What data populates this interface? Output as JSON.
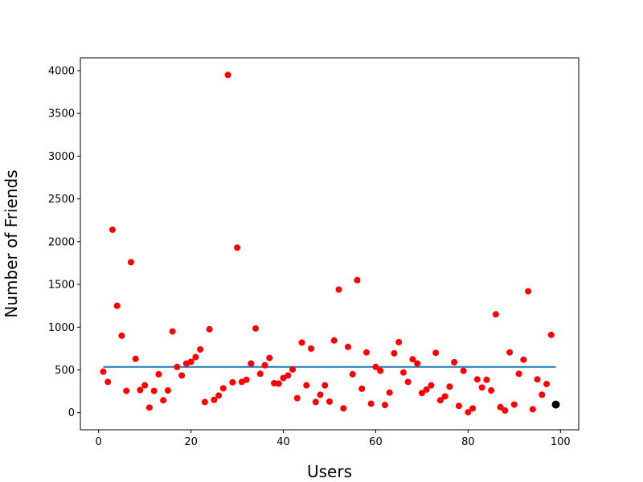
{
  "chart_data": {
    "type": "scatter",
    "xlabel": "Users",
    "ylabel": "Number of Friends",
    "xlim": [
      -3.95,
      103.95
    ],
    "ylim": [
      -200,
      4150
    ],
    "xticks": [
      0,
      20,
      40,
      60,
      80,
      100
    ],
    "yticks": [
      0,
      500,
      1000,
      1500,
      2000,
      2500,
      3000,
      3500,
      4000
    ],
    "grid": false,
    "legend": "none",
    "colors": {
      "points": "#ff0000",
      "highlight": "#000000",
      "mean_line": "#1f77b4"
    },
    "series": [
      {
        "x": [
          1,
          2,
          3,
          4,
          5,
          6,
          7,
          8,
          9,
          10,
          11,
          12,
          13,
          14,
          15,
          16,
          17,
          18,
          19,
          20,
          21,
          22,
          23,
          24,
          25,
          26,
          27,
          28,
          29,
          30,
          31,
          32,
          33,
          34,
          35,
          36,
          37,
          38,
          39,
          40,
          41,
          42,
          43,
          44,
          45,
          46,
          47,
          48,
          49,
          50,
          51,
          52,
          53,
          54,
          55,
          56,
          57,
          58,
          59,
          60,
          61,
          62,
          63,
          64,
          65,
          66,
          67,
          68,
          69,
          70,
          71,
          72,
          73,
          74,
          75,
          76,
          77,
          78,
          79,
          80,
          81,
          82,
          83,
          84,
          85,
          86,
          87,
          88,
          89,
          90,
          91,
          92,
          93,
          94,
          95,
          96,
          97,
          98
        ],
        "y": [
          480,
          360,
          2140,
          1250,
          900,
          255,
          1760,
          630,
          265,
          320,
          60,
          255,
          450,
          145,
          260,
          950,
          535,
          435,
          575,
          595,
          650,
          740,
          125,
          975,
          150,
          200,
          285,
          3950,
          355,
          1930,
          360,
          385,
          575,
          985,
          455,
          555,
          640,
          345,
          340,
          405,
          435,
          505,
          170,
          820,
          320,
          750,
          125,
          210,
          320,
          130,
          845,
          1440,
          50,
          770,
          450,
          1550,
          280,
          705,
          105,
          535,
          490,
          90,
          235,
          695,
          825,
          470,
          360,
          625,
          575,
          230,
          270,
          320,
          700,
          145,
          190,
          305,
          590,
          80,
          490,
          5,
          50,
          390,
          295,
          385,
          260,
          1150,
          65,
          25,
          705,
          95,
          455,
          620,
          1420,
          40,
          390,
          210,
          335,
          910
        ]
      },
      {
        "x": [
          99
        ],
        "y": [
          95
        ]
      }
    ],
    "mean_line": {
      "x": [
        1,
        99
      ],
      "y": 535
    }
  }
}
